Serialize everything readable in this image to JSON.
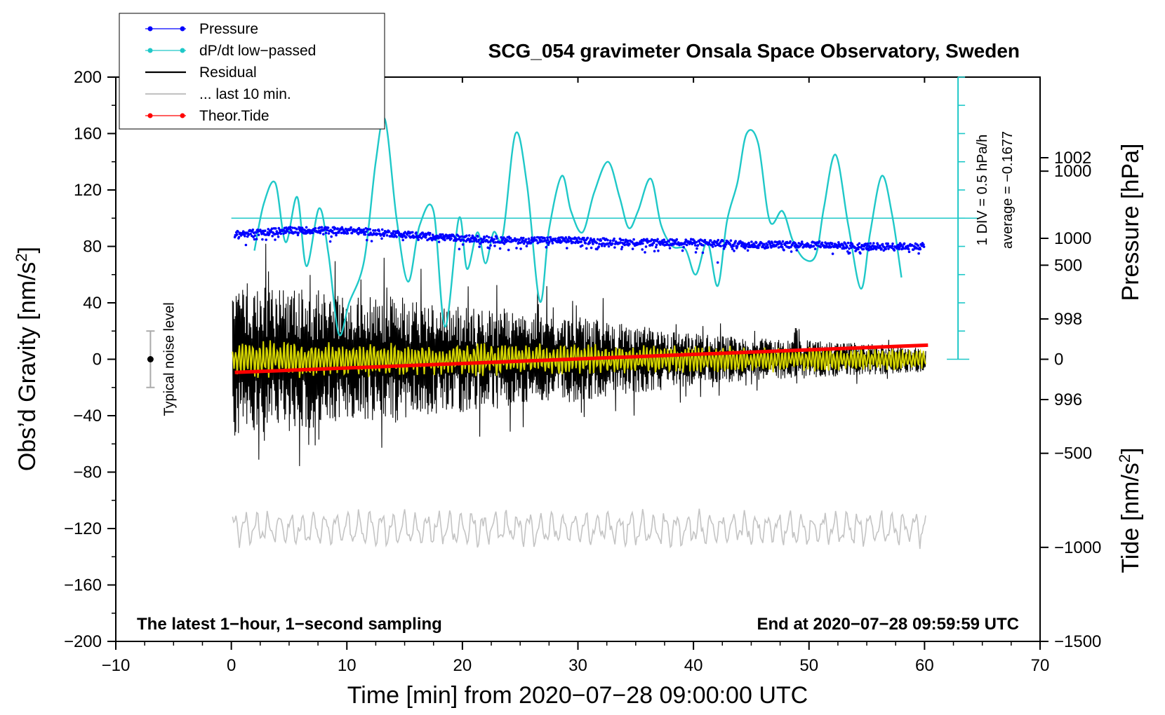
{
  "chart_data": {
    "type": "line",
    "title": "SCG_054 gravimeter Onsala Space Observatory, Sweden",
    "xlabel": "Time [min] from 2020−07−28 09:00:00 UTC",
    "ylabel_left": "Obs’d Gravity [nm/s",
    "ylabel_right_top": "Pressure [hPa]",
    "ylabel_right_bottom": "Tide [nm/s",
    "superscript": "2",
    "bottom_left_note": "The latest 1−hour, 1−second sampling",
    "bottom_right_note": "End at 2020−07−28 09:59:59 UTC",
    "xlim": [
      -10,
      70
    ],
    "ylim_gravity": [
      -200,
      200
    ],
    "ylim_pressure": [
      990,
      1004
    ],
    "ylim_tide": [
      -1500,
      1500
    ],
    "x_ticks": [
      "−10",
      "0",
      "10",
      "20",
      "30",
      "40",
      "50",
      "60",
      "70"
    ],
    "gravity_ticks": [
      "200",
      "160",
      "120",
      "80",
      "40",
      "0",
      "−40",
      "−80",
      "−120",
      "−160",
      "−200"
    ],
    "pressure_ticks": [
      "1002",
      "1000",
      "998",
      "996"
    ],
    "tide_ticks": [
      "1000",
      "500",
      "0",
      "−500",
      "−1000",
      "−1500"
    ],
    "dpdt_scale": {
      "div_label": "1 DIV = 0.5 hPa/h",
      "average_label": "average = −0.1677",
      "zero_gravity_level": 100
    },
    "noise_level": {
      "label": "Typical noise level",
      "x": -7,
      "center": 0,
      "half_range": 20
    },
    "legend": [
      {
        "name": "Pressure",
        "color": "#0000ff",
        "marker": true
      },
      {
        "name": "dP/dt low−passed",
        "color": "#1fc8c8",
        "marker": true
      },
      {
        "name": "Residual",
        "color": "#000000",
        "marker": false
      },
      {
        "name": "... last 10 min.",
        "color": "#c4c4c4",
        "marker": false
      },
      {
        "name": "Theor.Tide",
        "color": "#ff0000",
        "marker": true
      }
    ],
    "series": [
      {
        "name": "Pressure",
        "axis": "pressure",
        "color": "#0000ff",
        "x": [
          0.3,
          5,
          10,
          15,
          20,
          25,
          30,
          35,
          40,
          45,
          50,
          55,
          60
        ],
        "values": [
          1000.1,
          1000.2,
          1000.2,
          1000.1,
          1000.0,
          999.95,
          999.95,
          999.9,
          999.9,
          999.85,
          999.85,
          999.8,
          999.8
        ]
      },
      {
        "name": "dP/dt low−passed",
        "axis": "gravity",
        "color": "#1fc8c8",
        "x": [
          2,
          2.8,
          3.8,
          4.7,
          5.7,
          6.5,
          7.6,
          8.4,
          9.3,
          10.2,
          11.5,
          12.5,
          13.3,
          14.3,
          15.3,
          16.3,
          17.5,
          18.5,
          19.7,
          20.4,
          21.3,
          22.0,
          22.7,
          23.5,
          24.6,
          25.6,
          26.7,
          27.5,
          28.6,
          29.4,
          30.4,
          31.4,
          32.6,
          33.6,
          34.4,
          35.2,
          36.3,
          37.2,
          38.2,
          39.3,
          40.2,
          41.2,
          42.1,
          42.9,
          43.8,
          44.6,
          45.6,
          46.6,
          47.7,
          48.6,
          49.6,
          50.6,
          51.3,
          52.3,
          53.4,
          54.5,
          55.3,
          56.3,
          57.2,
          58.0
        ],
        "values": [
          77,
          110,
          125,
          83,
          115,
          66,
          107,
          75,
          18,
          40,
          70,
          140,
          170,
          100,
          55,
          95,
          105,
          23,
          100,
          64,
          90,
          68,
          90,
          88,
          160,
          123,
          41,
          92,
          130,
          105,
          90,
          118,
          140,
          115,
          93,
          105,
          128,
          95,
          80,
          78,
          60,
          83,
          52,
          98,
          125,
          160,
          153,
          98,
          105,
          84,
          71,
          74,
          108,
          145,
          95,
          50,
          90,
          130,
          102,
          58
        ]
      },
      {
        "name": "Residual",
        "axis": "gravity",
        "color": "#000000",
        "x_start": 0.1,
        "x_end": 60.1,
        "amplitude_envelope_x": [
          0,
          5,
          10,
          15,
          20,
          25,
          30,
          35,
          40,
          45,
          50,
          55,
          60
        ],
        "amplitude_envelope": [
          75,
          70,
          60,
          60,
          50,
          45,
          40,
          32,
          25,
          20,
          18,
          15,
          12
        ]
      },
      {
        "name": "Residual (smoothed)",
        "axis": "gravity",
        "color": "#d4d400",
        "x_start": 0.1,
        "x_end": 60.1,
        "amplitude": 12
      },
      {
        "name": "... last 10 min.",
        "axis": "gravity",
        "color": "#c4c4c4",
        "x_start": 0.1,
        "x_end": 60.1,
        "offset": -120,
        "amplitude": 12
      },
      {
        "name": "Theor.Tide",
        "axis": "tide",
        "color": "#ff0000",
        "x": [
          0.3,
          60.3
        ],
        "values": [
          -70,
          75
        ]
      }
    ]
  }
}
